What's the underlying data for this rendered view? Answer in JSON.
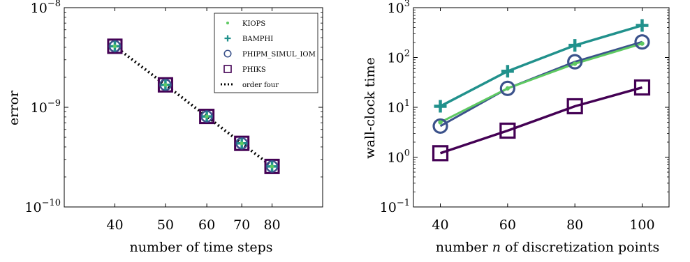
{
  "colors": {
    "kiops": "#5ec962",
    "bamphi": "#21918c",
    "phipm": "#3b528b",
    "phiks": "#440154",
    "order": "#000000"
  },
  "chart_data": [
    {
      "type": "scatter",
      "title": "",
      "xlabel": "number of time steps",
      "ylabel": "error",
      "xscale": "log",
      "yscale": "log",
      "xlim": [
        32,
        100
      ],
      "ylim": [
        1e-10,
        1e-08
      ],
      "xticks": [
        40,
        50,
        60,
        70,
        80
      ],
      "xtick_labels": [
        "40",
        "50",
        "60",
        "70",
        "80"
      ],
      "yticks": [
        {
          "value": 1e-08,
          "base": "10",
          "exp": "−8"
        },
        {
          "value": 1e-09,
          "base": "10",
          "exp": "−9"
        },
        {
          "value": 1e-10,
          "base": "10",
          "exp": "−10"
        }
      ],
      "legend": "top-right",
      "grid": false,
      "x": [
        40,
        50,
        60,
        70,
        80
      ],
      "series": [
        {
          "name": "KIOPS",
          "key": "kiops",
          "marker": "dot",
          "values": [
            4.1e-09,
            1.68e-09,
            8.1e-10,
            4.35e-10,
            2.55e-10
          ]
        },
        {
          "name": "BAMPHI",
          "key": "bamphi",
          "marker": "plus",
          "values": [
            4.1e-09,
            1.68e-09,
            8.1e-10,
            4.35e-10,
            2.55e-10
          ]
        },
        {
          "name": "PHIPM_SIMUL_IOM",
          "key": "phipm",
          "marker": "circle",
          "values": [
            4.1e-09,
            1.68e-09,
            8.1e-10,
            4.35e-10,
            2.55e-10
          ]
        },
        {
          "name": "PHIKS",
          "key": "phiks",
          "marker": "square",
          "values": [
            4.1e-09,
            1.68e-09,
            8.1e-10,
            4.35e-10,
            2.55e-10
          ]
        },
        {
          "name": "order four",
          "key": "order",
          "marker": "dotted-line",
          "values": [
            4.1e-09,
            1.68e-09,
            8.1e-10,
            4.35e-10,
            2.55e-10
          ]
        }
      ]
    },
    {
      "type": "line",
      "title": "",
      "xlabel": "number n of discretization points",
      "ylabel": "wall-clock time",
      "xscale": "linear",
      "yscale": "log",
      "xlim": [
        32,
        108
      ],
      "ylim": [
        0.1,
        1000
      ],
      "xticks": [
        40,
        60,
        80,
        100
      ],
      "xtick_labels": [
        "40",
        "60",
        "80",
        "100"
      ],
      "yticks": [
        {
          "value": 1000,
          "base": "10",
          "exp": "3"
        },
        {
          "value": 100,
          "base": "10",
          "exp": "2"
        },
        {
          "value": 10,
          "base": "10",
          "exp": "1"
        },
        {
          "value": 1,
          "base": "10",
          "exp": "0"
        },
        {
          "value": 0.1,
          "base": "10",
          "exp": "−1"
        }
      ],
      "grid": false,
      "x": [
        40,
        60,
        80,
        100
      ],
      "series": [
        {
          "key": "kiops",
          "marker": "dot",
          "values": [
            5,
            24,
            75,
            190
          ]
        },
        {
          "key": "bamphi",
          "marker": "plus",
          "values": [
            10.5,
            53,
            175,
            440
          ]
        },
        {
          "key": "phipm",
          "marker": "circle",
          "values": [
            4.2,
            24,
            82,
            205
          ]
        },
        {
          "key": "phiks",
          "marker": "square",
          "values": [
            1.2,
            3.4,
            10.5,
            25
          ]
        }
      ]
    }
  ]
}
